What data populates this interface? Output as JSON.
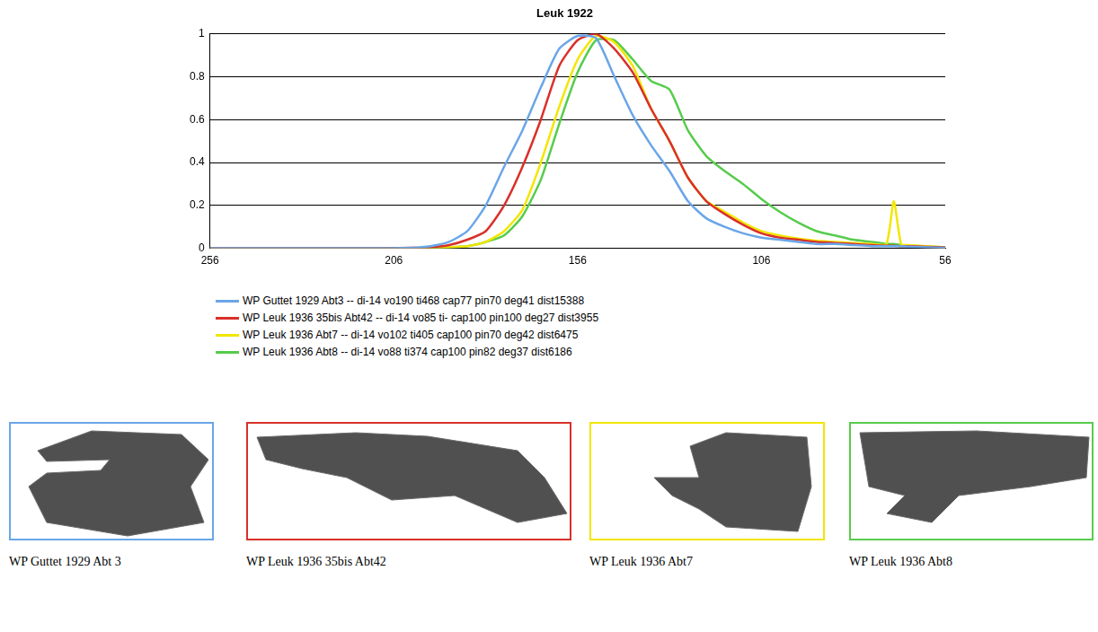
{
  "chart_data": {
    "type": "line",
    "title": "Leuk 1922",
    "x": [
      256,
      236,
      216,
      201,
      196,
      191,
      186,
      181,
      176,
      171,
      166,
      161,
      156,
      151,
      146,
      141,
      136,
      131,
      126,
      121,
      116,
      111,
      106,
      101,
      96,
      91,
      86,
      81,
      76,
      72,
      70,
      68,
      66,
      61,
      56
    ],
    "xlim": [
      256,
      56
    ],
    "xticks": [
      256,
      206,
      156,
      106,
      56
    ],
    "ylim": [
      0,
      1
    ],
    "yticks": [
      0,
      0.2,
      0.4,
      0.6,
      0.8,
      1
    ],
    "grid": true,
    "legend": "bottom",
    "series": [
      {
        "name": "WP Guttet 1929 Abt3 -- di-14 vo190 ti468 cap77 pin70 deg41 dist15388",
        "color": "#6aa6e8",
        "values": [
          0,
          0,
          0,
          0.003,
          0.01,
          0.03,
          0.08,
          0.2,
          0.38,
          0.55,
          0.75,
          0.93,
          0.99,
          0.98,
          0.8,
          0.62,
          0.48,
          0.36,
          0.22,
          0.14,
          0.1,
          0.07,
          0.05,
          0.04,
          0.03,
          0.02,
          0.02,
          0.015,
          0.01,
          0.01,
          0.01,
          0.01,
          0.008,
          0.005,
          0.003
        ]
      },
      {
        "name": "WP Leuk 1936 35bis Abt42 -- di-14 vo85 ti- cap100 pin100 deg27 dist3955",
        "color": "#d9302a",
        "values": [
          0,
          0,
          0,
          0.002,
          0.005,
          0.015,
          0.04,
          0.08,
          0.2,
          0.38,
          0.6,
          0.85,
          0.97,
          1,
          0.93,
          0.82,
          0.65,
          0.5,
          0.33,
          0.22,
          0.16,
          0.11,
          0.07,
          0.05,
          0.04,
          0.03,
          0.025,
          0.02,
          0.015,
          0.012,
          0.012,
          0.01,
          0.01,
          0.007,
          0.005
        ]
      },
      {
        "name": "WP Leuk 1936 Abt7 -- di-14 vo102 ti405 cap100 pin70 deg42 dist6475",
        "color": "#f2e600",
        "values": [
          0,
          0,
          0,
          0,
          0.002,
          0.005,
          0.01,
          0.03,
          0.08,
          0.18,
          0.4,
          0.66,
          0.88,
          0.99,
          0.96,
          0.85,
          0.65,
          0.5,
          0.33,
          0.22,
          0.17,
          0.12,
          0.08,
          0.06,
          0.045,
          0.035,
          0.03,
          0.025,
          0.02,
          0.02,
          0.22,
          0.02,
          0.015,
          0.01,
          0.005
        ]
      },
      {
        "name": "WP Leuk 1936 Abt8 -- di-14 vo88 ti374 cap100 pin82 deg37 dist6186",
        "color": "#56cc4c",
        "values": [
          0,
          0,
          0,
          0,
          0.002,
          0.005,
          0.01,
          0.03,
          0.06,
          0.15,
          0.32,
          0.58,
          0.82,
          0.97,
          0.97,
          0.88,
          0.78,
          0.74,
          0.55,
          0.43,
          0.36,
          0.3,
          0.23,
          0.17,
          0.12,
          0.08,
          0.06,
          0.04,
          0.03,
          0.02,
          0.02,
          0.015,
          0.012,
          0.008,
          0.005
        ]
      }
    ]
  },
  "images": [
    {
      "caption": "WP Guttet 1929 Abt 3",
      "color": "#6aa6e8"
    },
    {
      "caption": "WP Leuk 1936 35bis Abt42",
      "color": "#d9302a"
    },
    {
      "caption": "WP Leuk 1936 Abt7",
      "color": "#f2e600"
    },
    {
      "caption": "WP Leuk 1936 Abt8",
      "color": "#56cc4c"
    }
  ]
}
